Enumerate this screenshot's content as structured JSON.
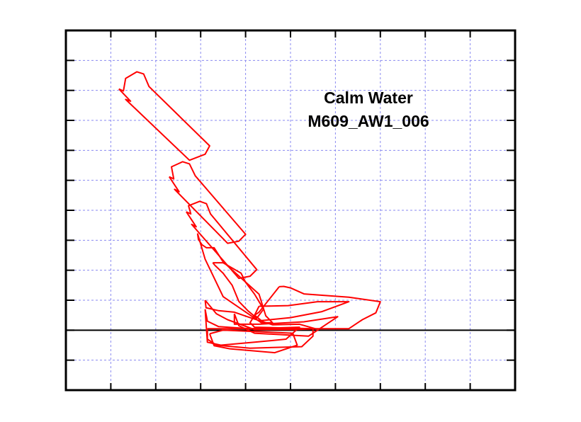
{
  "chart_data": {
    "type": "line",
    "title": "Calm Water",
    "subtitle": "M609_AW1_006",
    "xlabel": "",
    "ylabel": "",
    "grid": true,
    "xlim": [
      0,
      10
    ],
    "ylim": [
      -2,
      10
    ],
    "waterline_y": 0,
    "colors": {
      "hull": "#ff0000",
      "grid": "#8a8af0",
      "axis": "#000000",
      "waterline": "#000000"
    },
    "series": [
      {
        "points": [
          [
            1.18,
            8.05
          ],
          [
            1.28,
            7.98
          ],
          [
            1.33,
            8.4
          ],
          [
            1.58,
            8.62
          ],
          [
            1.73,
            8.55
          ],
          [
            1.85,
            8.13
          ],
          [
            3.2,
            6.15
          ],
          [
            3.1,
            5.87
          ],
          [
            2.75,
            5.67
          ],
          [
            1.33,
            7.7
          ],
          [
            1.44,
            7.64
          ],
          [
            1.18,
            8.05
          ]
        ]
      },
      {
        "points": [
          [
            2.3,
            5.12
          ],
          [
            2.4,
            5.05
          ],
          [
            2.35,
            5.45
          ],
          [
            2.6,
            5.62
          ],
          [
            2.75,
            5.55
          ],
          [
            2.88,
            5.15
          ],
          [
            4.0,
            3.2
          ],
          [
            3.85,
            2.97
          ],
          [
            3.6,
            2.9
          ],
          [
            2.42,
            4.7
          ],
          [
            2.52,
            4.62
          ],
          [
            2.3,
            5.12
          ]
        ]
      },
      {
        "points": [
          [
            2.68,
            3.95
          ],
          [
            2.78,
            3.88
          ],
          [
            2.73,
            4.15
          ],
          [
            2.98,
            4.3
          ],
          [
            3.13,
            4.22
          ],
          [
            3.22,
            3.88
          ],
          [
            4.25,
            2.02
          ],
          [
            4.1,
            1.8
          ],
          [
            3.85,
            1.73
          ],
          [
            2.8,
            3.53
          ],
          [
            2.9,
            3.45
          ],
          [
            2.68,
            3.95
          ]
        ]
      },
      {
        "points": [
          [
            2.93,
            3.23
          ],
          [
            2.95,
            3.03
          ],
          [
            3.03,
            2.85
          ],
          [
            3.13,
            2.75
          ],
          [
            3.3,
            2.75
          ],
          [
            3.5,
            2.28
          ],
          [
            4.3,
            1.2
          ],
          [
            4.45,
            0.48
          ],
          [
            4.6,
            0.25
          ],
          [
            4.35,
            0.25
          ],
          [
            3.5,
            1.12
          ],
          [
            3.1,
            2.37
          ],
          [
            2.93,
            3.23
          ]
        ]
      },
      {
        "points": [
          [
            3.27,
            2.25
          ],
          [
            3.32,
            2.16
          ],
          [
            3.5,
            1.9
          ],
          [
            3.7,
            1.5
          ],
          [
            3.85,
            0.96
          ],
          [
            4.05,
            0.65
          ],
          [
            4.25,
            0.4
          ],
          [
            4.4,
            0.7
          ],
          [
            4.2,
            1.2
          ],
          [
            4.0,
            1.6
          ],
          [
            3.9,
            1.9
          ],
          [
            3.5,
            2.25
          ],
          [
            3.27,
            2.25
          ]
        ]
      },
      {
        "points": [
          [
            3.1,
            1.0
          ],
          [
            3.12,
            0.75
          ],
          [
            3.4,
            0.65
          ],
          [
            3.75,
            0.6
          ],
          [
            4.1,
            0.42
          ],
          [
            4.6,
            0.18
          ],
          [
            5.2,
            0.2
          ],
          [
            5.55,
            0.05
          ],
          [
            5.1,
            0.02
          ],
          [
            4.2,
            0.02
          ],
          [
            3.6,
            0.35
          ],
          [
            3.35,
            0.55
          ],
          [
            3.1,
            1.0
          ]
        ]
      },
      {
        "points": [
          [
            3.1,
            0.7
          ],
          [
            3.15,
            0.3
          ],
          [
            3.4,
            0.12
          ],
          [
            4.1,
            0.05
          ],
          [
            5.2,
            0.1
          ],
          [
            4.9,
            -0.3
          ],
          [
            4.2,
            -0.4
          ],
          [
            3.45,
            -0.5
          ],
          [
            3.15,
            -0.4
          ],
          [
            3.1,
            0.7
          ]
        ]
      },
      {
        "points": [
          [
            3.15,
            0.05
          ],
          [
            3.15,
            -0.3
          ],
          [
            3.35,
            -0.5
          ],
          [
            4.1,
            -0.6
          ],
          [
            5.25,
            -0.55
          ],
          [
            5.5,
            -0.2
          ],
          [
            5.5,
            0.05
          ],
          [
            4.5,
            0.05
          ],
          [
            3.15,
            0.05
          ]
        ]
      },
      {
        "points": [
          [
            3.2,
            -0.12
          ],
          [
            3.3,
            -0.52
          ],
          [
            3.65,
            -0.62
          ],
          [
            4.65,
            -0.75
          ],
          [
            5.15,
            -0.5
          ],
          [
            5.05,
            -0.1
          ],
          [
            3.5,
            0.0
          ],
          [
            3.2,
            -0.12
          ]
        ]
      },
      {
        "points": [
          [
            3.75,
            0.55
          ],
          [
            3.75,
            0.2
          ],
          [
            4.3,
            0.2
          ],
          [
            5.3,
            0.28
          ],
          [
            6.05,
            0.45
          ],
          [
            5.4,
            -0.2
          ],
          [
            4.2,
            -0.1
          ],
          [
            3.85,
            0.15
          ],
          [
            3.75,
            0.55
          ]
        ]
      },
      {
        "points": [
          [
            4.3,
            0.8
          ],
          [
            4.35,
            0.8
          ],
          [
            4.95,
            0.82
          ],
          [
            5.6,
            0.95
          ],
          [
            6.3,
            0.95
          ],
          [
            5.7,
            0.62
          ],
          [
            5.0,
            0.42
          ],
          [
            4.35,
            0.32
          ],
          [
            4.2,
            0.5
          ],
          [
            4.3,
            0.8
          ]
        ]
      },
      {
        "points": [
          [
            4.75,
            1.45
          ],
          [
            4.85,
            1.46
          ],
          [
            5.0,
            1.41
          ],
          [
            5.3,
            1.21
          ],
          [
            6.3,
            1.1
          ],
          [
            7.0,
            0.95
          ],
          [
            6.9,
            0.58
          ],
          [
            6.6,
            0.35
          ],
          [
            6.3,
            0.05
          ],
          [
            5.5,
            0.05
          ],
          [
            4.2,
            0.1
          ],
          [
            4.1,
            0.25
          ],
          [
            4.2,
            0.5
          ],
          [
            4.3,
            0.6
          ],
          [
            4.75,
            1.45
          ]
        ]
      }
    ]
  }
}
